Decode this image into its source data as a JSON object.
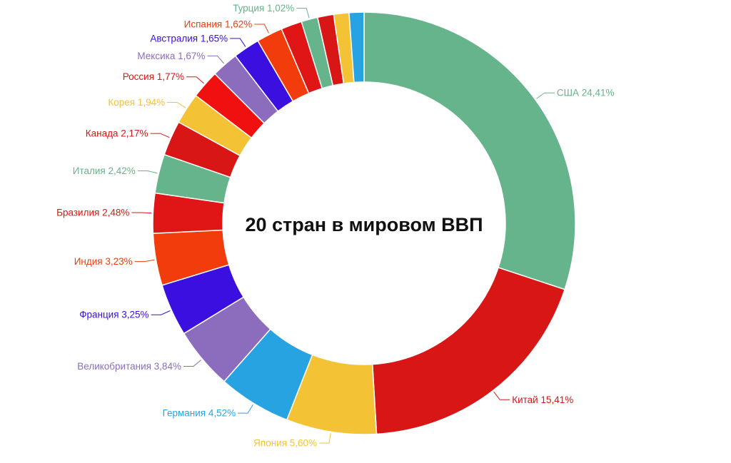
{
  "chart_data": {
    "type": "pie",
    "subtype": "donut",
    "center_label": "20 стран в мировом ВВП",
    "slices": [
      {
        "name": "США",
        "value": 24.41,
        "label": "США 24,41%",
        "color": "#66b48b",
        "label_color": "#66b48b"
      },
      {
        "name": "Китай",
        "value": 15.41,
        "label": "Китай 15,41%",
        "color": "#d91616",
        "label_color": "#d91616"
      },
      {
        "name": "Япония",
        "value": 5.6,
        "label": "Япония 5,60%",
        "color": "#f4c235",
        "label_color": "#f4c235"
      },
      {
        "name": "Германия",
        "value": 4.52,
        "label": "Германия 4,52%",
        "color": "#27a3e2",
        "label_color": "#27a3e2"
      },
      {
        "name": "Великобритания",
        "value": 3.84,
        "label": "Великобритания 3,84%",
        "color": "#8c6dbd",
        "label_color": "#8c6dbd"
      },
      {
        "name": "Франция",
        "value": 3.25,
        "label": "Франция 3,25%",
        "color": "#3a0fe0",
        "label_color": "#3a0fe0"
      },
      {
        "name": "Индия",
        "value": 3.23,
        "label": "Индия 3,23%",
        "color": "#f23c0c",
        "label_color": "#f23c0c"
      },
      {
        "name": "Бразилия",
        "value": 2.48,
        "label": "Бразилия 2,48%",
        "color": "#e01515",
        "label_color": "#e01515"
      },
      {
        "name": "Италия",
        "value": 2.42,
        "label": "Италия 2,42%",
        "color": "#66b48b",
        "label_color": "#66b48b"
      },
      {
        "name": "Канада",
        "value": 2.17,
        "label": "Канада 2,17%",
        "color": "#d91616",
        "label_color": "#d91616"
      },
      {
        "name": "Корея",
        "value": 1.94,
        "label": "Корея 1,94%",
        "color": "#f4c235",
        "label_color": "#f4c235"
      },
      {
        "name": "Россия",
        "value": 1.77,
        "label": "Россия 1,77%",
        "color": "#f01010",
        "label_color": "#e01515"
      },
      {
        "name": "Мексика",
        "value": 1.67,
        "label": "Мексика 1,67%",
        "color": "#8c6dbd",
        "label_color": "#8c6dbd"
      },
      {
        "name": "Австралия",
        "value": 1.65,
        "label": "Австралия 1,65%",
        "color": "#3a0fe0",
        "label_color": "#3a0fe0"
      },
      {
        "name": "Испания",
        "value": 1.62,
        "label": "Испания 1,62%",
        "color": "#f23c0c",
        "label_color": "#f23c0c"
      },
      {
        "name": "",
        "value": 1.3,
        "label": "",
        "color": "#e01515",
        "label_color": "#e01515"
      },
      {
        "name": "Турция",
        "value": 1.02,
        "label": "Турция 1,02%",
        "color": "#66b48b",
        "label_color": "#66b48b"
      },
      {
        "name": "",
        "value": 1.0,
        "label": "",
        "color": "#d91616",
        "label_color": "#d91616"
      },
      {
        "name": "",
        "value": 0.95,
        "label": "",
        "color": "#f4c235",
        "label_color": "#f4c235"
      },
      {
        "name": "",
        "value": 0.92,
        "label": "",
        "color": "#27a3e2",
        "label_color": "#27a3e2"
      }
    ]
  }
}
